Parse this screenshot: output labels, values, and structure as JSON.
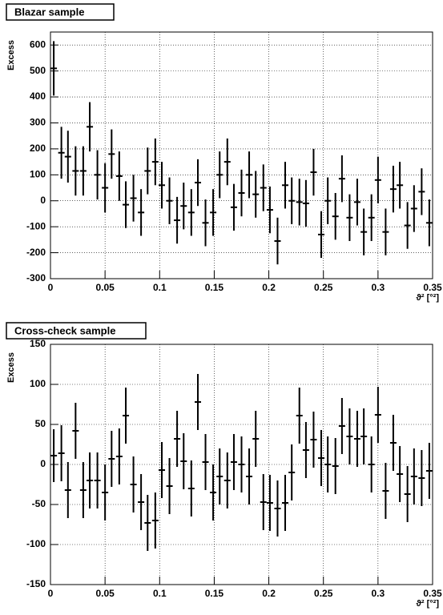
{
  "chart_data": [
    {
      "type": "errorbar",
      "title": "Blazar sample",
      "ylabel": "Excess",
      "xlabel": "ϑ² [°²]",
      "color": "#000000",
      "grid": true,
      "xlim": [
        0,
        0.35
      ],
      "xticks": [
        0,
        0.05,
        0.1,
        0.15,
        0.2,
        0.25,
        0.3,
        0.35
      ],
      "ylim": [
        -300,
        650
      ],
      "yticks": [
        -300,
        -200,
        -100,
        0,
        100,
        200,
        300,
        400,
        500,
        600
      ],
      "x": [
        0.003,
        0.01,
        0.016,
        0.023,
        0.03,
        0.036,
        0.043,
        0.05,
        0.056,
        0.063,
        0.069,
        0.076,
        0.083,
        0.089,
        0.096,
        0.102,
        0.109,
        0.116,
        0.122,
        0.129,
        0.135,
        0.142,
        0.149,
        0.155,
        0.162,
        0.168,
        0.175,
        0.182,
        0.188,
        0.195,
        0.201,
        0.208,
        0.215,
        0.221,
        0.228,
        0.234,
        0.241,
        0.248,
        0.254,
        0.261,
        0.267,
        0.274,
        0.281,
        0.287,
        0.294,
        0.3,
        0.307,
        0.314,
        0.32,
        0.327,
        0.333,
        0.34,
        0.347
      ],
      "values": [
        510,
        185,
        170,
        115,
        115,
        285,
        100,
        50,
        180,
        95,
        -15,
        10,
        -45,
        115,
        150,
        60,
        0,
        -75,
        -20,
        -45,
        70,
        -85,
        -45,
        100,
        150,
        -25,
        30,
        100,
        25,
        50,
        -35,
        -155,
        60,
        0,
        -5,
        -10,
        110,
        -130,
        0,
        -60,
        85,
        -65,
        -5,
        -120,
        -65,
        80,
        -120,
        45,
        60,
        -95,
        -30,
        35,
        -85
      ],
      "errors": [
        105,
        100,
        100,
        95,
        95,
        95,
        95,
        95,
        95,
        95,
        90,
        90,
        90,
        90,
        90,
        90,
        90,
        90,
        90,
        90,
        90,
        90,
        90,
        90,
        90,
        90,
        90,
        90,
        90,
        90,
        90,
        90,
        90,
        90,
        90,
        90,
        90,
        90,
        90,
        90,
        90,
        90,
        90,
        90,
        90,
        90,
        90,
        90,
        90,
        90,
        90,
        90,
        90
      ]
    },
    {
      "type": "errorbar",
      "title": "Cross-check sample",
      "ylabel": "Excess",
      "xlabel": "ϑ² [°²]",
      "color": "#000000",
      "grid": true,
      "xlim": [
        0,
        0.35
      ],
      "xticks": [
        0,
        0.05,
        0.1,
        0.15,
        0.2,
        0.25,
        0.3,
        0.35
      ],
      "ylim": [
        -150,
        150
      ],
      "yticks": [
        -150,
        -100,
        -50,
        0,
        50,
        100,
        150
      ],
      "x": [
        0.003,
        0.01,
        0.016,
        0.023,
        0.03,
        0.036,
        0.043,
        0.05,
        0.056,
        0.063,
        0.069,
        0.076,
        0.083,
        0.089,
        0.096,
        0.102,
        0.109,
        0.116,
        0.122,
        0.129,
        0.135,
        0.142,
        0.149,
        0.155,
        0.162,
        0.168,
        0.175,
        0.182,
        0.188,
        0.195,
        0.201,
        0.208,
        0.215,
        0.221,
        0.228,
        0.234,
        0.241,
        0.248,
        0.254,
        0.261,
        0.267,
        0.274,
        0.281,
        0.287,
        0.294,
        0.3,
        0.307,
        0.314,
        0.32,
        0.327,
        0.333,
        0.34,
        0.347
      ],
      "values": [
        11,
        14,
        -32,
        42,
        -32,
        -20,
        -20,
        -35,
        7,
        10,
        61,
        -25,
        -47,
        -73,
        -70,
        -7,
        -27,
        32,
        4,
        -30,
        78,
        3,
        -35,
        -15,
        -20,
        3,
        0,
        -15,
        32,
        -47,
        -48,
        -55,
        -48,
        -10,
        61,
        18,
        31,
        8,
        0,
        -2,
        48,
        35,
        32,
        35,
        0,
        62,
        -33,
        27,
        -12,
        -37,
        -15,
        -17,
        -8
      ],
      "errors": [
        33,
        35,
        35,
        35,
        35,
        35,
        35,
        35,
        35,
        35,
        35,
        35,
        35,
        35,
        35,
        35,
        35,
        35,
        35,
        35,
        35,
        35,
        35,
        35,
        35,
        35,
        35,
        35,
        35,
        35,
        35,
        35,
        35,
        35,
        35,
        35,
        35,
        35,
        35,
        35,
        35,
        35,
        35,
        35,
        35,
        35,
        35,
        35,
        35,
        35,
        35,
        35,
        35
      ]
    }
  ]
}
